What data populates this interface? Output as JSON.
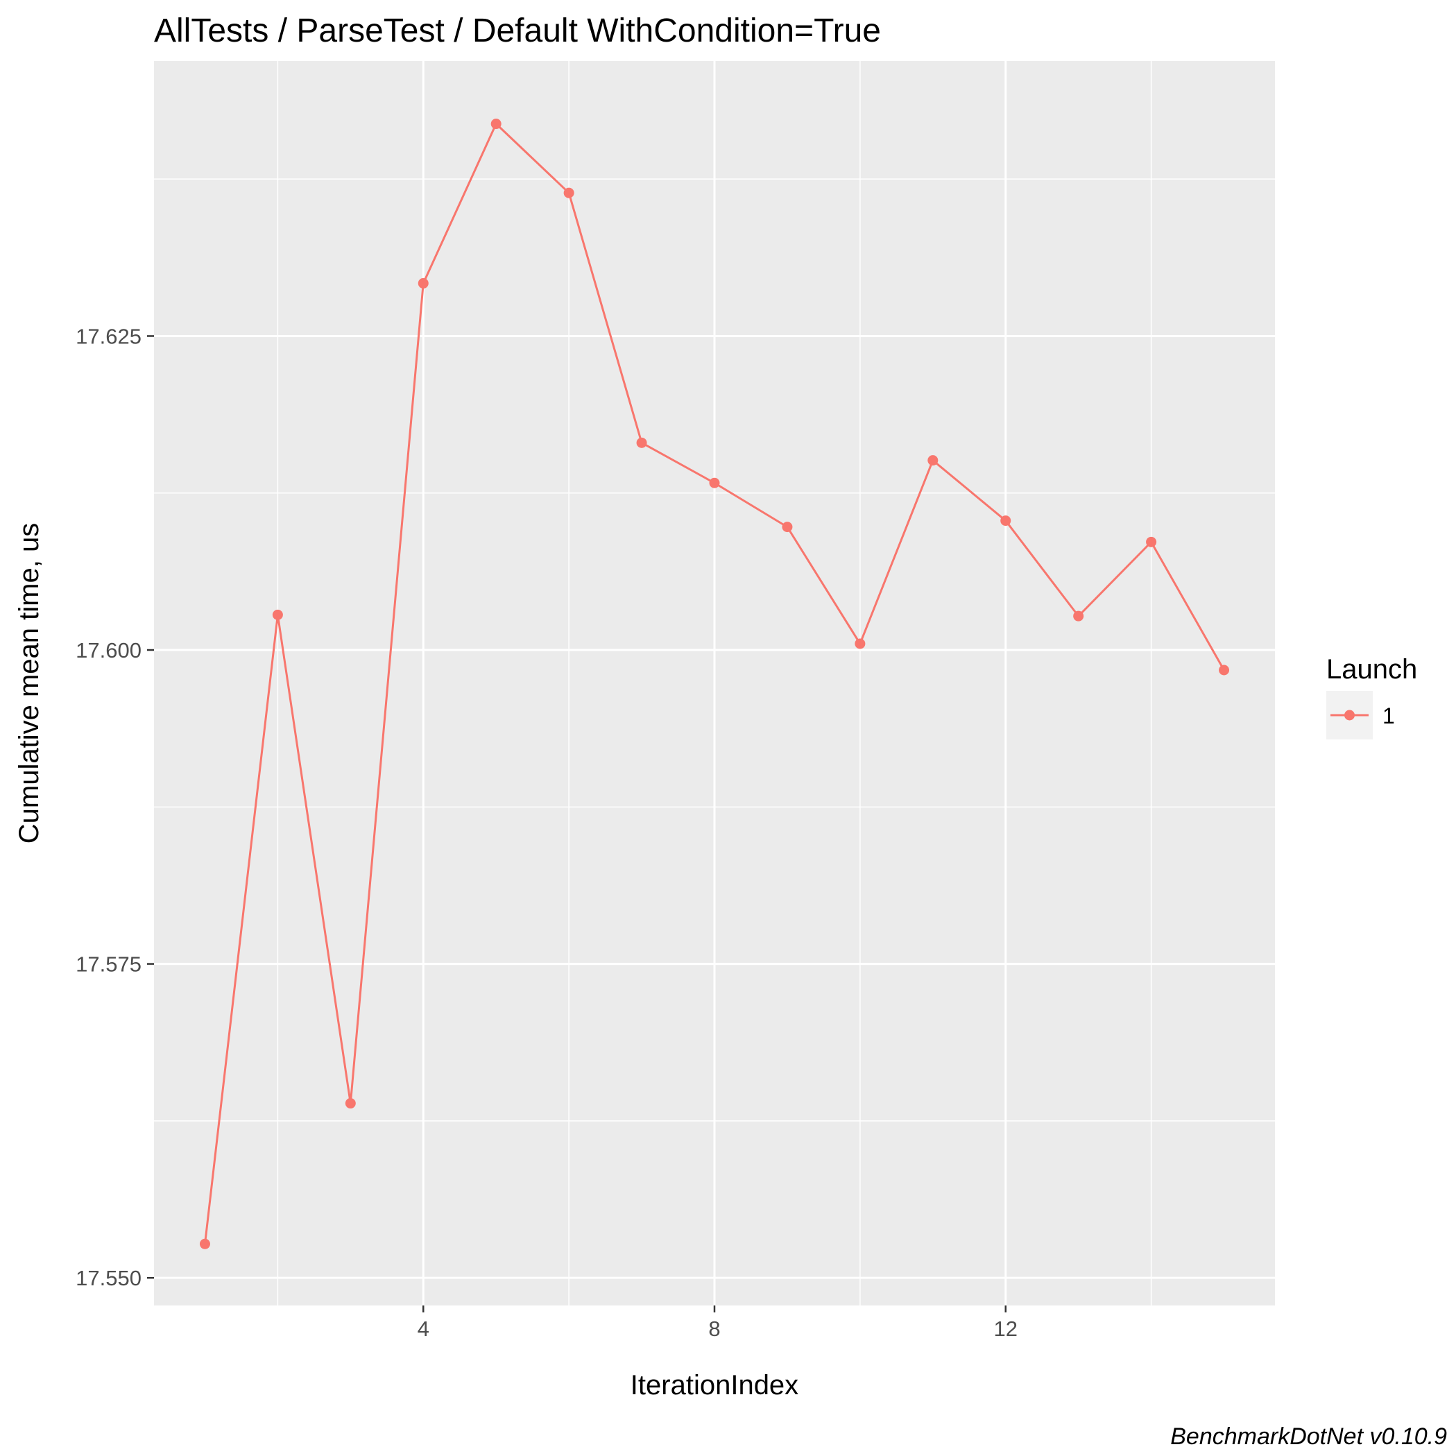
{
  "chart_data": {
    "type": "line",
    "title": "AllTests / ParseTest / Default WithCondition=True",
    "xlabel": "IterationIndex",
    "ylabel": "Cumulative mean time, us",
    "caption": "BenchmarkDotNet v0.10.9",
    "xlim": [
      0.3,
      15.7
    ],
    "ylim": [
      17.5478,
      17.6469
    ],
    "x_ticks": [
      4,
      8,
      12
    ],
    "x_tick_labels": [
      "4",
      "8",
      "12"
    ],
    "x_minor_ticks": [
      2,
      6,
      10,
      14
    ],
    "y_ticks": [
      17.55,
      17.575,
      17.6,
      17.625
    ],
    "y_tick_labels": [
      "17.550",
      "17.575",
      "17.600",
      "17.625"
    ],
    "y_minor_ticks": [
      17.5625,
      17.5875,
      17.6125,
      17.6375
    ],
    "grid": true,
    "panel_background": "#ebebeb",
    "legend": {
      "title": "Launch",
      "position": "right",
      "entries": [
        "1"
      ]
    },
    "series": [
      {
        "name": "1",
        "color": "#f8766d",
        "x": [
          1,
          2,
          3,
          4,
          5,
          6,
          7,
          8,
          9,
          10,
          11,
          12,
          13,
          14,
          15
        ],
        "values": [
          17.5527,
          17.6028,
          17.5639,
          17.6292,
          17.6419,
          17.6364,
          17.6165,
          17.6133,
          17.6098,
          17.6005,
          17.6151,
          17.6103,
          17.6027,
          17.6086,
          17.5984
        ]
      }
    ]
  }
}
